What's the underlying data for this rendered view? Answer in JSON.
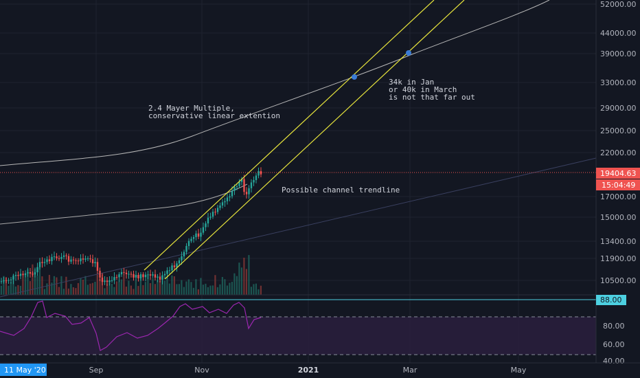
{
  "chart_data": {
    "type": "candlestick",
    "price_axis": {
      "scale": "log",
      "ticks": [
        "52000.00",
        "44000.00",
        "39000.00",
        "33000.00",
        "29000.00",
        "25000.00",
        "22000.00",
        "17000.00",
        "15000.00",
        "13400.00",
        "11900.00",
        "10500.00"
      ]
    },
    "time_axis": {
      "ticks": [
        "Sep",
        "Nov",
        "2021",
        "Mar",
        "May"
      ],
      "cursor_label": "11 May '20"
    },
    "last_price": "19404.63",
    "countdown": "15:04:49",
    "annotations": {
      "mayer": [
        "2.4 Mayer Multiple,",
        "conservative linear extention"
      ],
      "target": [
        "34k in Jan",
        "or 40k in March",
        "is not that far out"
      ],
      "channel": "Possible channel trendline"
    },
    "rsi": {
      "ticks": [
        "80.00",
        "60.00",
        "40.00"
      ],
      "current_label": "88.00",
      "series_color": "#9c27b0"
    },
    "colors": {
      "up": "#26a69a",
      "down": "#ef5350",
      "channel": "#e6e33c",
      "mayer": "#c8c8c8",
      "marker": "#3a7bd5"
    }
  }
}
